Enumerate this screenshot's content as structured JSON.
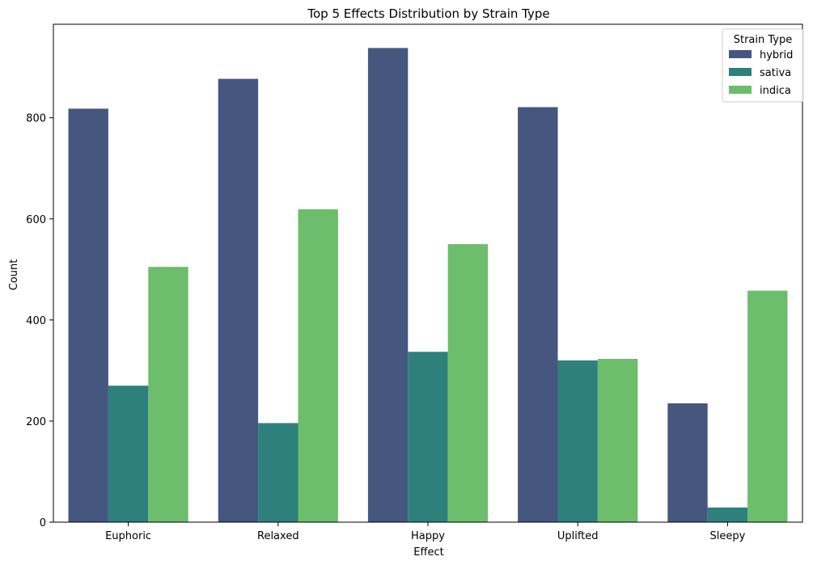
{
  "chart_data": {
    "type": "bar",
    "title": "Top 5 Effects Distribution by Strain Type",
    "xlabel": "Effect",
    "ylabel": "Count",
    "categories": [
      "Euphoric",
      "Relaxed",
      "Happy",
      "Uplifted",
      "Sleepy"
    ],
    "ylim": [
      0,
      985
    ],
    "yticks": [
      0,
      200,
      400,
      600,
      800
    ],
    "series": [
      {
        "name": "hybrid",
        "color": "#45567f",
        "values": [
          818,
          877,
          938,
          821,
          235
        ]
      },
      {
        "name": "sativa",
        "color": "#2e807c",
        "values": [
          270,
          196,
          337,
          320,
          29
        ]
      },
      {
        "name": "indica",
        "color": "#6cbd6c",
        "values": [
          505,
          619,
          550,
          323,
          458
        ]
      }
    ],
    "legend": {
      "title": "Strain Type",
      "placement": "top-right"
    },
    "grid": false
  }
}
